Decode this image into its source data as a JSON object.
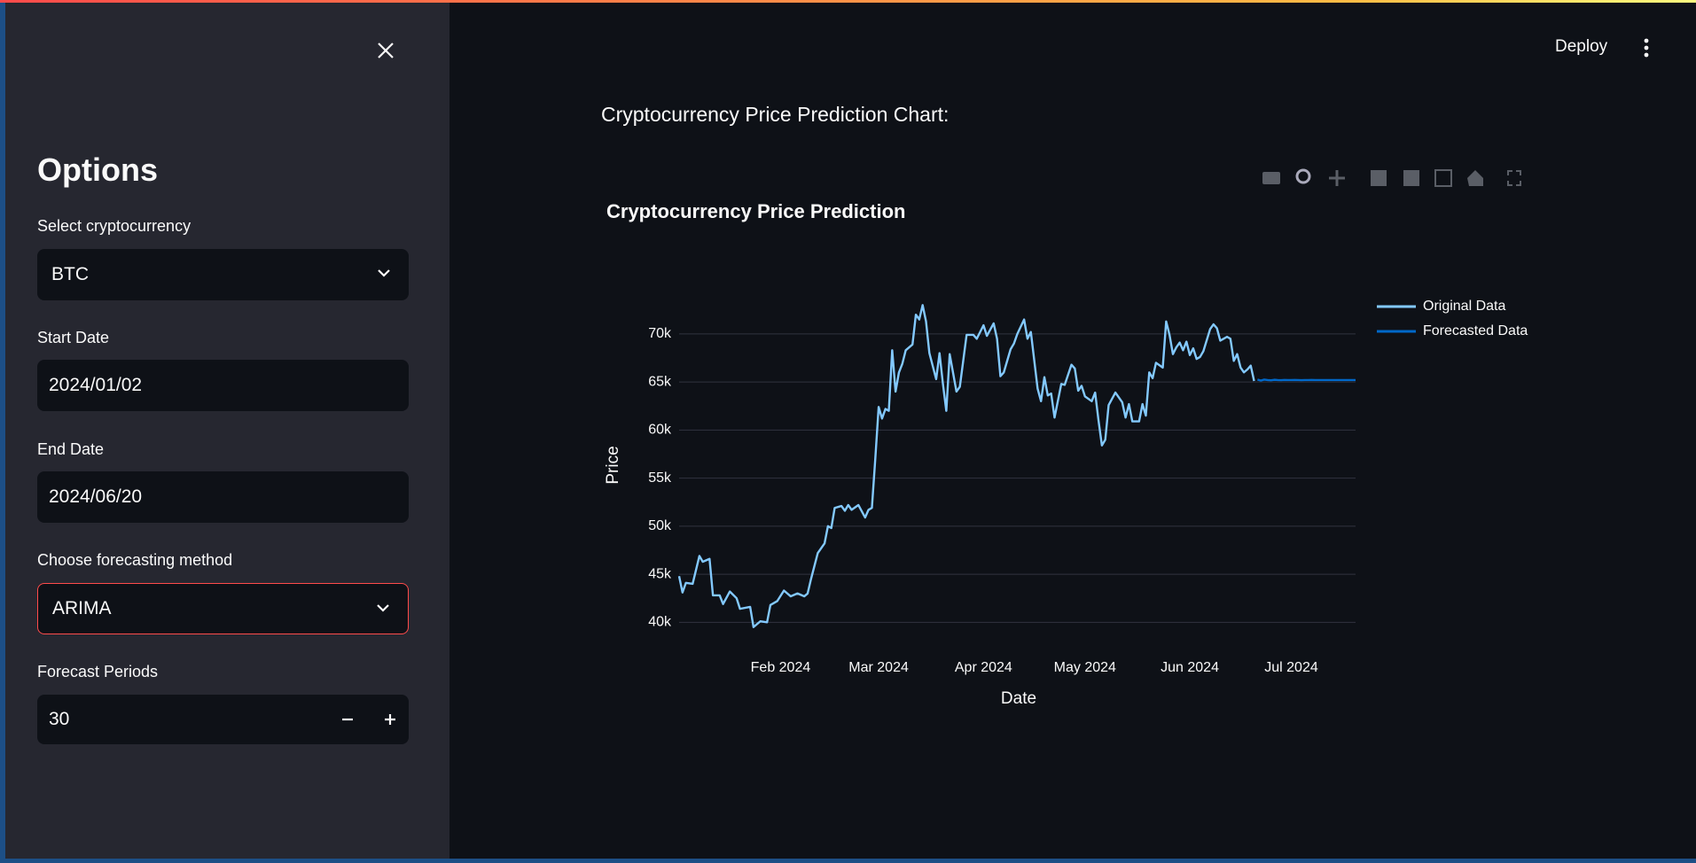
{
  "sidebar": {
    "title": "Options",
    "fields": [
      {
        "label": "Select cryptocurrency",
        "value": "BTC"
      },
      {
        "label": "Start Date",
        "value": "2024/01/02"
      },
      {
        "label": "End Date",
        "value": "2024/06/20"
      },
      {
        "label": "Choose forecasting method",
        "value": "ARIMA"
      },
      {
        "label": "Forecast Periods",
        "value": 30
      }
    ]
  },
  "header": {
    "deploy": "Deploy"
  },
  "heading": "Cryptocurrency Price Prediction Chart:",
  "chart_data": {
    "type": "line",
    "title": "Cryptocurrency Price Prediction",
    "x_label": "Date",
    "y_label": "Price",
    "grid": true,
    "legend": "right",
    "xlim": [
      "2024-01-02",
      "2024-07-20"
    ],
    "xticks": [
      {
        "value": "2024-02-01",
        "label": "Feb 2024"
      },
      {
        "value": "2024-03-01",
        "label": "Mar 2024"
      },
      {
        "value": "2024-04-01",
        "label": "Apr 2024"
      },
      {
        "value": "2024-05-01",
        "label": "May 2024"
      },
      {
        "value": "2024-06-01",
        "label": "Jun 2024"
      },
      {
        "value": "2024-07-01",
        "label": "Jul 2024"
      }
    ],
    "ylim": [
      39200,
      73400
    ],
    "yticks": [
      {
        "value": 40000,
        "label": "40k"
      },
      {
        "value": 45000,
        "label": "45k"
      },
      {
        "value": 50000,
        "label": "50k"
      },
      {
        "value": 55000,
        "label": "55k"
      },
      {
        "value": 60000,
        "label": "60k"
      },
      {
        "value": 65000,
        "label": "65k"
      },
      {
        "value": 70000,
        "label": "70k"
      }
    ],
    "series": [
      {
        "name": "Original Data",
        "color": "#83c9ff",
        "x": [
          "2024-01-02",
          "2024-01-03",
          "2024-01-04",
          "2024-01-06",
          "2024-01-08",
          "2024-01-09",
          "2024-01-11",
          "2024-01-12",
          "2024-01-14",
          "2024-01-15",
          "2024-01-17",
          "2024-01-19",
          "2024-01-20",
          "2024-01-23",
          "2024-01-24",
          "2024-01-26",
          "2024-01-28",
          "2024-01-29",
          "2024-01-31",
          "2024-02-02",
          "2024-02-04",
          "2024-02-06",
          "2024-02-08",
          "2024-02-09",
          "2024-02-10",
          "2024-02-12",
          "2024-02-14",
          "2024-02-15",
          "2024-02-16",
          "2024-02-17",
          "2024-02-19",
          "2024-02-20",
          "2024-02-21",
          "2024-02-22",
          "2024-02-24",
          "2024-02-26",
          "2024-02-27",
          "2024-02-28",
          "2024-02-29",
          "2024-03-01",
          "2024-03-02",
          "2024-03-03",
          "2024-03-04",
          "2024-03-05",
          "2024-03-06",
          "2024-03-07",
          "2024-03-08",
          "2024-03-09",
          "2024-03-11",
          "2024-03-12",
          "2024-03-13",
          "2024-03-14",
          "2024-03-15",
          "2024-03-16",
          "2024-03-18",
          "2024-03-19",
          "2024-03-20",
          "2024-03-21",
          "2024-03-22",
          "2024-03-24",
          "2024-03-25",
          "2024-03-27",
          "2024-03-29",
          "2024-03-30",
          "2024-04-01",
          "2024-04-02",
          "2024-04-04",
          "2024-04-05",
          "2024-04-06",
          "2024-04-07",
          "2024-04-09",
          "2024-04-10",
          "2024-04-11",
          "2024-04-13",
          "2024-04-14",
          "2024-04-15",
          "2024-04-17",
          "2024-04-18",
          "2024-04-19",
          "2024-04-20",
          "2024-04-21",
          "2024-04-22",
          "2024-04-24",
          "2024-04-25",
          "2024-04-27",
          "2024-04-28",
          "2024-04-29",
          "2024-04-30",
          "2024-05-01",
          "2024-05-03",
          "2024-05-04",
          "2024-05-05",
          "2024-05-06",
          "2024-05-07",
          "2024-05-08",
          "2024-05-10",
          "2024-05-12",
          "2024-05-13",
          "2024-05-14",
          "2024-05-15",
          "2024-05-17",
          "2024-05-18",
          "2024-05-19",
          "2024-05-20",
          "2024-05-21",
          "2024-05-22",
          "2024-05-24",
          "2024-05-25",
          "2024-05-26",
          "2024-05-27",
          "2024-05-28",
          "2024-05-29",
          "2024-05-30",
          "2024-05-31",
          "2024-06-01",
          "2024-06-02",
          "2024-06-03",
          "2024-06-04",
          "2024-06-05",
          "2024-06-07",
          "2024-06-08",
          "2024-06-09",
          "2024-06-10",
          "2024-06-11",
          "2024-06-12",
          "2024-06-13",
          "2024-06-14",
          "2024-06-15",
          "2024-06-16",
          "2024-06-17",
          "2024-06-18",
          "2024-06-19",
          "2024-06-20"
        ],
        "values": [
          44800,
          43100,
          44100,
          44000,
          46900,
          46300,
          46600,
          42800,
          42800,
          41900,
          43200,
          42500,
          41400,
          41600,
          39500,
          40100,
          40000,
          41800,
          42200,
          43300,
          42700,
          43000,
          42700,
          43000,
          44500,
          47200,
          48200,
          50000,
          49800,
          51900,
          52100,
          51600,
          52200,
          51700,
          52200,
          50900,
          51700,
          51900,
          57000,
          62400,
          61200,
          62200,
          62000,
          68300,
          64000,
          66000,
          66900,
          68300,
          68900,
          72000,
          71500,
          73000,
          71300,
          68000,
          65300,
          68000,
          64800,
          62000,
          67900,
          64000,
          64500,
          69900,
          69900,
          69500,
          70900,
          69800,
          71100,
          69500,
          65600,
          66000,
          68400,
          69000,
          70000,
          71500,
          69500,
          70200,
          64300,
          63000,
          65500,
          63600,
          63800,
          61300,
          64800,
          64700,
          66800,
          66400,
          64100,
          64600,
          63500,
          63000,
          63900,
          61000,
          58400,
          59000,
          62600,
          63900,
          62900,
          61300,
          62700,
          60900,
          60900,
          62700,
          61500,
          66000,
          65400,
          67000,
          66500,
          71300,
          69900,
          67900,
          68600,
          69100,
          68300,
          69200,
          67800,
          68500,
          67400,
          67600,
          68200,
          70500,
          71000,
          70600,
          69300,
          69500,
          69700,
          69500,
          67200,
          67900,
          66500,
          66000,
          66300,
          66700,
          65100
        ]
      },
      {
        "name": "Forecasted Data",
        "color": "#0068c9",
        "x": [
          "2024-06-21",
          "2024-06-22",
          "2024-06-23",
          "2024-06-24",
          "2024-06-25",
          "2024-06-26",
          "2024-06-27",
          "2024-06-28",
          "2024-06-29",
          "2024-06-30",
          "2024-07-01",
          "2024-07-02",
          "2024-07-03",
          "2024-07-04",
          "2024-07-05",
          "2024-07-06",
          "2024-07-07",
          "2024-07-08",
          "2024-07-09",
          "2024-07-10",
          "2024-07-11",
          "2024-07-12",
          "2024-07-13",
          "2024-07-14",
          "2024-07-15",
          "2024-07-16",
          "2024-07-17",
          "2024-07-18",
          "2024-07-19",
          "2024-07-20"
        ],
        "values": [
          65250,
          65150,
          65250,
          65200,
          65180,
          65230,
          65200,
          65190,
          65210,
          65200,
          65200,
          65210,
          65200,
          65190,
          65200,
          65200,
          65210,
          65200,
          65200,
          65200,
          65200,
          65200,
          65200,
          65200,
          65200,
          65200,
          65200,
          65200,
          65200,
          65200
        ]
      }
    ]
  }
}
